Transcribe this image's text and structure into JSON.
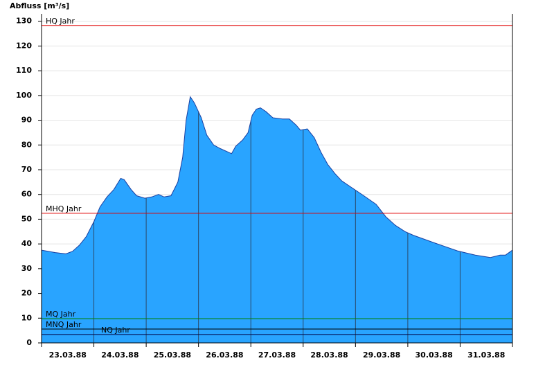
{
  "chart_data": {
    "type": "area",
    "y_label": "Abfluss [m³/s]",
    "color": "#29a4ff",
    "line_color": "#1a3fa0",
    "ylim": [
      0,
      133
    ],
    "yticks": [
      0,
      10,
      20,
      30,
      40,
      50,
      60,
      70,
      80,
      90,
      100,
      110,
      120,
      130
    ],
    "grid": true,
    "xlim": [
      0,
      9
    ],
    "xticks": [
      0,
      1,
      2,
      3,
      4,
      5,
      6,
      7,
      8,
      9
    ],
    "xtick_labels": [
      {
        "value": 0.5,
        "label": "23.03.88"
      },
      {
        "value": 1.5,
        "label": "24.03.88"
      },
      {
        "value": 2.5,
        "label": "25.03.88"
      },
      {
        "value": 3.5,
        "label": "26.03.88"
      },
      {
        "value": 4.5,
        "label": "27.03.88"
      },
      {
        "value": 5.5,
        "label": "28.03.88"
      },
      {
        "value": 6.5,
        "label": "29.03.88"
      },
      {
        "value": 7.5,
        "label": "30.03.88"
      },
      {
        "value": 8.5,
        "label": "31.03.88"
      }
    ],
    "x": [
      0,
      0.263,
      0.461,
      0.592,
      0.724,
      0.855,
      1.0,
      1.118,
      1.25,
      1.382,
      1.513,
      1.579,
      1.711,
      1.816,
      1.974,
      2.105,
      2.237,
      2.342,
      2.474,
      2.605,
      2.697,
      2.763,
      2.842,
      2.921,
      3.053,
      3.158,
      3.289,
      3.421,
      3.632,
      3.711,
      3.842,
      3.947,
      4.026,
      4.105,
      4.184,
      4.289,
      4.421,
      4.605,
      4.737,
      4.868,
      4.947,
      5.079,
      5.211,
      5.342,
      5.474,
      5.605,
      5.737,
      5.947,
      6.158,
      6.395,
      6.579,
      6.763,
      6.947,
      7.105,
      7.5,
      7.947,
      8.289,
      8.579,
      8.763,
      8.868,
      9
    ],
    "values": [
      37.5,
      36.5,
      36,
      37,
      39.5,
      43,
      49,
      55,
      59,
      62,
      66.5,
      66,
      62,
      59.5,
      58.5,
      59,
      60,
      59,
      59.5,
      65,
      75,
      90,
      99.5,
      97,
      91,
      84,
      80,
      78.5,
      76.5,
      79.5,
      82,
      85,
      92,
      94.5,
      95,
      93.5,
      91,
      90.5,
      90.5,
      88,
      86,
      86.5,
      83,
      77,
      72,
      68.5,
      65.5,
      62.5,
      59.5,
      56,
      51,
      47.5,
      45,
      43.5,
      40.5,
      37.2,
      35.5,
      34.5,
      35.5,
      35.5,
      37.5
    ],
    "reference_lines": [
      {
        "label": "HQ Jahr",
        "value": 128.3,
        "color": "#e00000"
      },
      {
        "label": "MHQ Jahr",
        "value": 52.4,
        "color": "#e00000"
      },
      {
        "label": "MQ Jahr",
        "value": 9.8,
        "color": "#008000"
      },
      {
        "label": "MNQ Jahr",
        "value": 5.6,
        "color": "#000000"
      },
      {
        "label": "NQ Jahr",
        "value": 3.4,
        "color": "#000040"
      }
    ]
  }
}
